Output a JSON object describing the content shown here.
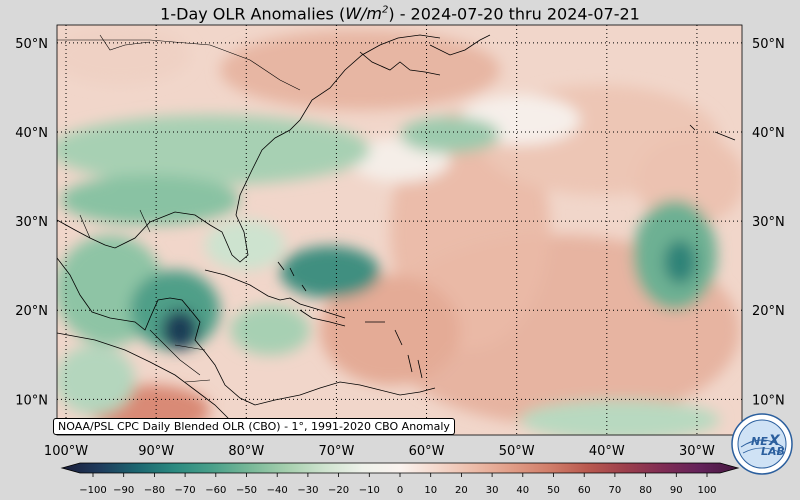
{
  "title": {
    "prefix": "1-Day OLR Anomalies (",
    "unit_base": "W/m",
    "unit_exp": "2",
    "suffix": ") - 2024-07-20 thru 2024-07-21"
  },
  "map": {
    "lat_labels": [
      "50°N",
      "40°N",
      "30°N",
      "20°N",
      "10°N"
    ],
    "lat_values": [
      50,
      40,
      30,
      20,
      10
    ],
    "lon_labels": [
      "100°W",
      "90°W",
      "80°W",
      "70°W",
      "60°W",
      "50°W",
      "40°W",
      "30°W"
    ],
    "lon_values": [
      -100,
      -90,
      -80,
      -70,
      -60,
      -50,
      -40,
      -30
    ],
    "extent": {
      "lon_min": -101,
      "lon_max": -25,
      "lat_min": 6,
      "lat_max": 52
    },
    "source_note": "NOAA/PSL CPC Daily Blended OLR (CBO) - 1°, 1991-2020 CBO Anomaly",
    "colors": {
      "strong_negative": "#1f2f4d",
      "negative": "#2a8a7f",
      "weak_negative": "#a9d2b8",
      "neutral": "#f3ece6",
      "weak_positive": "#e9bca9",
      "positive": "#c96a5a",
      "strong_positive": "#6b1e58"
    }
  },
  "colorbar": {
    "ticks": [
      "−100",
      "−90",
      "−80",
      "−70",
      "−60",
      "−50",
      "−40",
      "−30",
      "−20",
      "−10",
      "0",
      "10",
      "20",
      "30",
      "40",
      "50",
      "60",
      "70",
      "80",
      "90",
      "100"
    ],
    "stops": [
      "#1b1d3a",
      "#1f3b5c",
      "#1c6670",
      "#2b8a80",
      "#4aa08a",
      "#78b898",
      "#a6cfae",
      "#cfe3cf",
      "#eef1ea",
      "#faf3ef",
      "#f4d8cc",
      "#ecbba8",
      "#e09c86",
      "#d07d69",
      "#b9594f",
      "#9c3f4c",
      "#7f2c54",
      "#63225a",
      "#45183f"
    ]
  },
  "logo": {
    "text_a": "NE",
    "text_b": "LAB"
  }
}
